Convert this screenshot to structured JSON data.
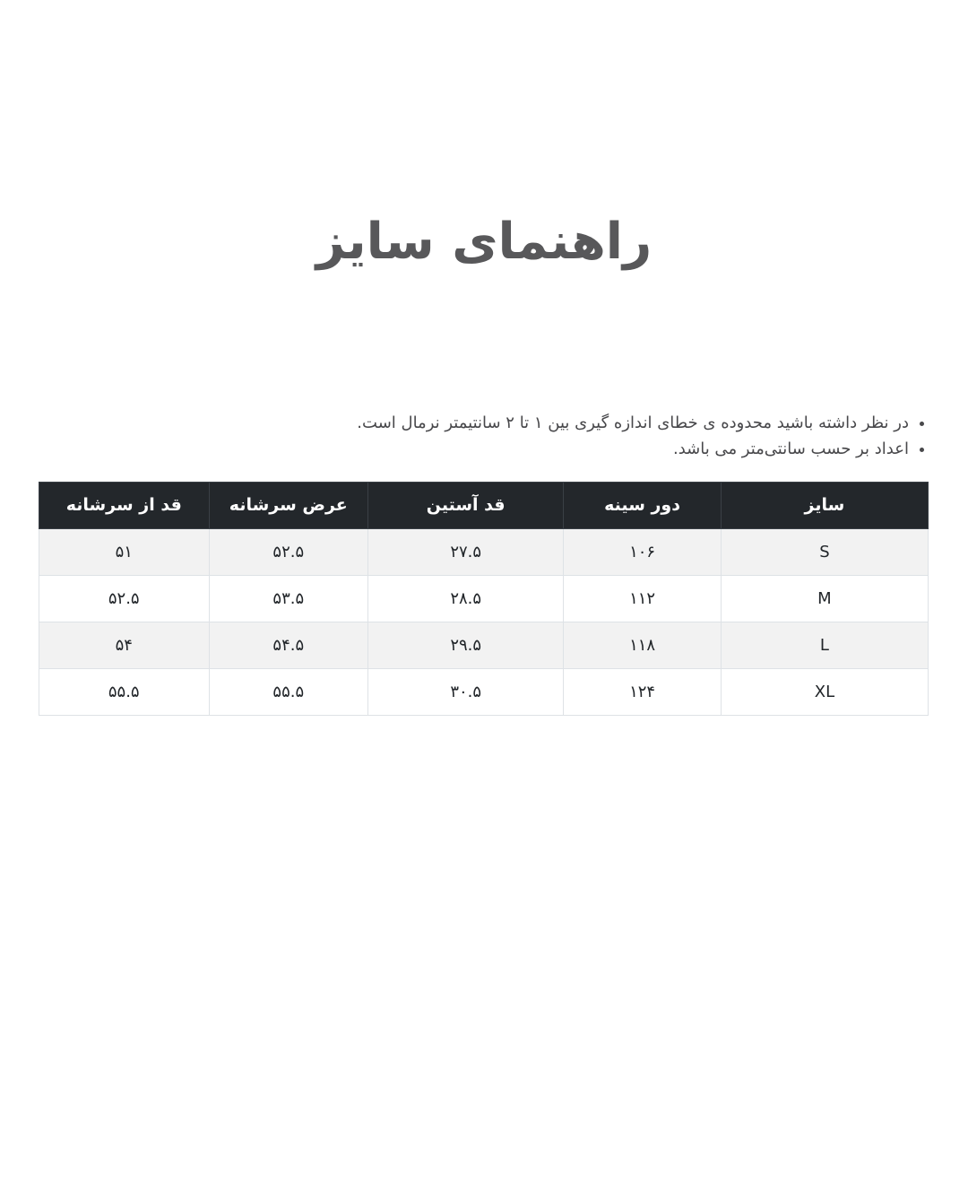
{
  "page": {
    "title": "راهنمای سایز"
  },
  "notes": [
    "در نظر داشته باشید محدوده ی خطای اندازه گیری بین ۱ تا ۲ سانتیمتر نرمال است.",
    "اعداد بر حسب سانتی‌متر می باشد."
  ],
  "table": {
    "headers": [
      "سایز",
      "دور سینه",
      "قد آستین",
      "عرض سرشانه",
      "قد از سرشانه"
    ],
    "rows": [
      {
        "cells": [
          "S",
          "۱۰۶",
          "۲۷.۵",
          "۵۲.۵",
          "۵۱"
        ]
      },
      {
        "cells": [
          "M",
          "۱۱۲",
          "۲۸.۵",
          "۵۳.۵",
          "۵۲.۵"
        ]
      },
      {
        "cells": [
          "L",
          "۱۱۸",
          "۲۹.۵",
          "۵۴.۵",
          "۵۴"
        ]
      },
      {
        "cells": [
          "XL",
          "۱۲۴",
          "۳۰.۵",
          "۵۵.۵",
          "۵۵.۵"
        ]
      }
    ]
  },
  "colors": {
    "header_bg": "#23272b",
    "header_text": "#ffffff",
    "row_stripe": "#f2f2f2",
    "body_border": "#dee2e6",
    "title_text": "#58585a",
    "note_text": "#48484b"
  }
}
